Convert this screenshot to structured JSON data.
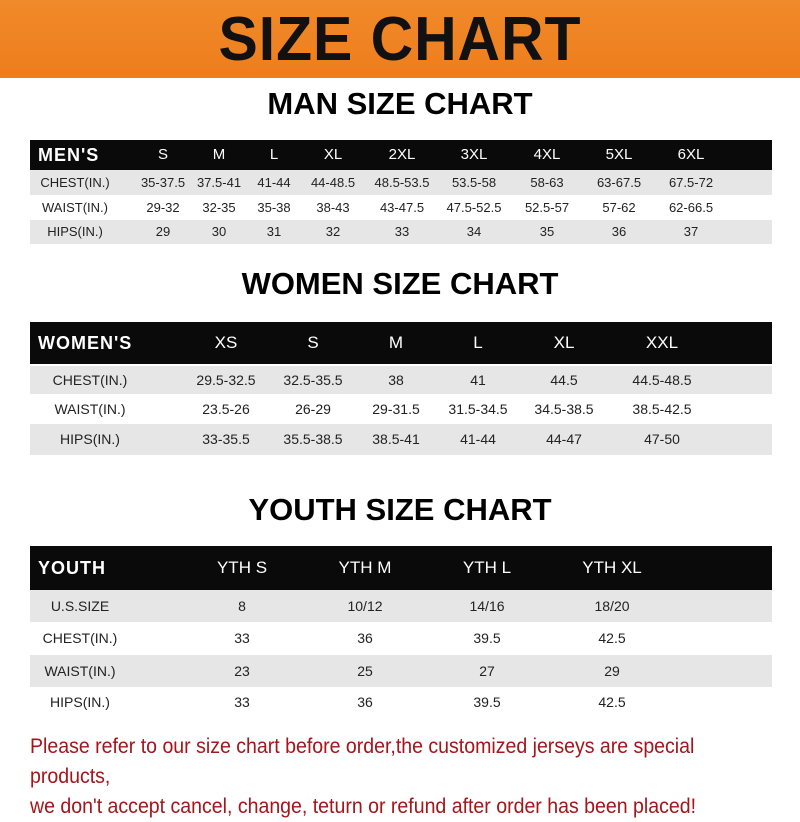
{
  "title": "SIZE CHART",
  "colors": {
    "banner": "#ee7d1c",
    "header_row": "#0a0a0a",
    "stripe": "#e6e6e6",
    "notice": "#a4161a"
  },
  "men": {
    "title": "MAN SIZE CHART",
    "header": [
      "MEN'S",
      "S",
      "M",
      "L",
      "XL",
      "2XL",
      "3XL",
      "4XL",
      "5XL",
      "6XL"
    ],
    "rows": [
      [
        "CHEST(IN.)",
        "35-37.5",
        "37.5-41",
        "41-44",
        "44-48.5",
        "48.5-53.5",
        "53.5-58",
        "58-63",
        "63-67.5",
        "67.5-72"
      ],
      [
        "WAIST(IN.)",
        "29-32",
        "32-35",
        "35-38",
        "38-43",
        "43-47.5",
        "47.5-52.5",
        "52.5-57",
        "57-62",
        "62-66.5"
      ],
      [
        "HIPS(IN.)",
        "29",
        "30",
        "31",
        "32",
        "33",
        "34",
        "35",
        "36",
        "37"
      ]
    ]
  },
  "women": {
    "title": "WOMEN SIZE CHART",
    "header": [
      "WOMEN'S",
      "XS",
      "S",
      "M",
      "L",
      "XL",
      "XXL"
    ],
    "rows": [
      [
        "CHEST(IN.)",
        "29.5-32.5",
        "32.5-35.5",
        "38",
        "41",
        "44.5",
        "44.5-48.5"
      ],
      [
        "WAIST(IN.)",
        "23.5-26",
        "26-29",
        "29-31.5",
        "31.5-34.5",
        "34.5-38.5",
        "38.5-42.5"
      ],
      [
        "HIPS(IN.)",
        "33-35.5",
        "35.5-38.5",
        "38.5-41",
        "41-44",
        "44-47",
        "47-50"
      ]
    ]
  },
  "youth": {
    "title": "YOUTH SIZE CHART",
    "header": [
      "YOUTH",
      "YTH S",
      "YTH M",
      "YTH L",
      "YTH XL"
    ],
    "rows": [
      [
        "U.S.SIZE",
        "8",
        "10/12",
        "14/16",
        "18/20"
      ],
      [
        "CHEST(IN.)",
        "33",
        "36",
        "39.5",
        "42.5"
      ],
      [
        "WAIST(IN.)",
        "23",
        "25",
        "27",
        "29"
      ],
      [
        "HIPS(IN.)",
        "33",
        "36",
        "39.5",
        "42.5"
      ]
    ]
  },
  "notice": {
    "line1": "Please refer to our size chart before order,the customized jerseys are special products,",
    "line2": "we don't accept cancel, change, teturn or refund after order has been placed!"
  }
}
